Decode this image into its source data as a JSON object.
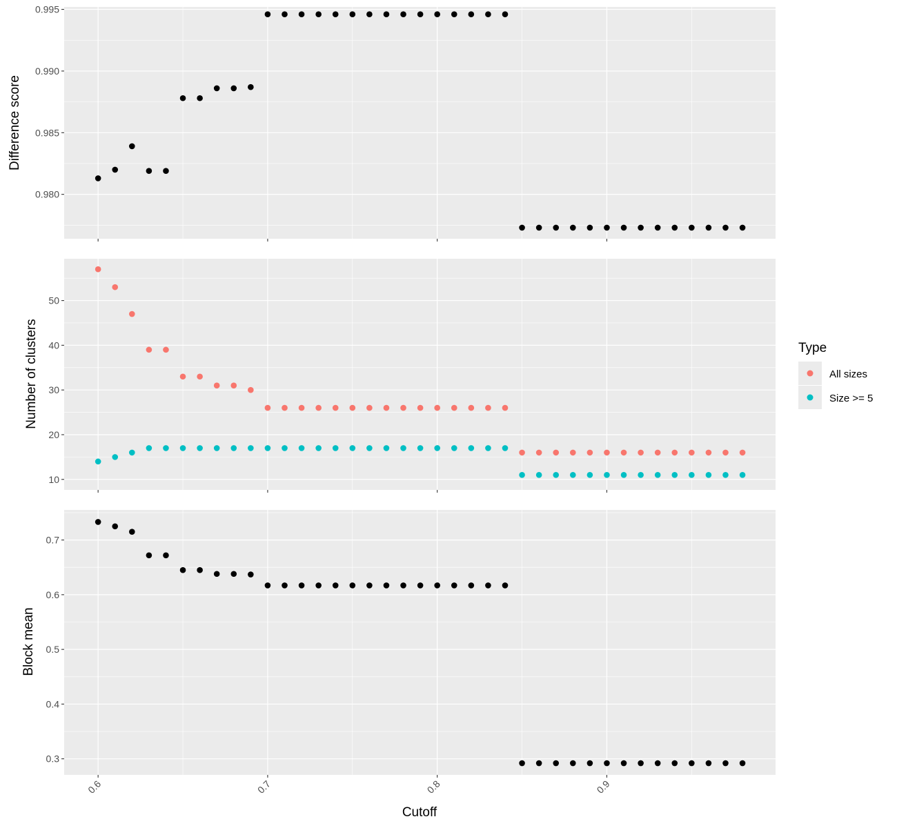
{
  "chart_data": {
    "type": "scatter",
    "x_label": "Cutoff",
    "x_ticks": [
      0.6,
      0.7,
      0.8,
      0.9
    ],
    "x_tick_labels": [
      "0.6",
      "0.7",
      "0.8",
      "0.9"
    ],
    "x_range": [
      0.58,
      0.9995
    ],
    "grid": true,
    "legend": {
      "title": "Type",
      "placement": "right",
      "entries": [
        {
          "label": "All sizes",
          "color": "#F8766D"
        },
        {
          "label": "Size >= 5",
          "color": "#00BFC4"
        }
      ]
    },
    "x": [
      0.6,
      0.61,
      0.62,
      0.63,
      0.64,
      0.65,
      0.66,
      0.67,
      0.68,
      0.69,
      0.7,
      0.71,
      0.72,
      0.73,
      0.74,
      0.75,
      0.76,
      0.77,
      0.78,
      0.79,
      0.8,
      0.81,
      0.82,
      0.83,
      0.84,
      0.85,
      0.86,
      0.87,
      0.88,
      0.89,
      0.9,
      0.91,
      0.92,
      0.93,
      0.94,
      0.95,
      0.96,
      0.97,
      0.98
    ],
    "panels": [
      {
        "y_label": "Difference score",
        "y_range": [
          0.9764,
          0.9952
        ],
        "y_ticks": [
          0.98,
          0.985,
          0.99,
          0.995
        ],
        "y_tick_labels": [
          "0.980",
          "0.985",
          "0.990",
          "0.995"
        ],
        "series": [
          {
            "name": "",
            "color": "#000000",
            "values": [
              0.9813,
              0.982,
              0.9839,
              0.9819,
              0.9819,
              0.9878,
              0.9878,
              0.9886,
              0.9886,
              0.9887,
              0.9946,
              0.9946,
              0.9946,
              0.9946,
              0.9946,
              0.9946,
              0.9946,
              0.9946,
              0.9946,
              0.9946,
              0.9946,
              0.9946,
              0.9946,
              0.9946,
              0.9946,
              0.9773,
              0.9773,
              0.9773,
              0.9773,
              0.9773,
              0.9773,
              0.9773,
              0.9773,
              0.9773,
              0.9773,
              0.9773,
              0.9773,
              0.9773,
              0.9773
            ]
          }
        ]
      },
      {
        "y_label": "Number of clusters",
        "y_range": [
          7.65,
          59.35
        ],
        "y_ticks": [
          10,
          20,
          30,
          40,
          50
        ],
        "y_tick_labels": [
          "10",
          "20",
          "30",
          "40",
          "50"
        ],
        "series": [
          {
            "name": "All sizes",
            "color": "#F8766D",
            "values": [
              57,
              53,
              47,
              39,
              39,
              33,
              33,
              31,
              31,
              30,
              26,
              26,
              26,
              26,
              26,
              26,
              26,
              26,
              26,
              26,
              26,
              26,
              26,
              26,
              26,
              16,
              16,
              16,
              16,
              16,
              16,
              16,
              16,
              16,
              16,
              16,
              16,
              16,
              16
            ]
          },
          {
            "name": "Size >= 5",
            "color": "#00BFC4",
            "values": [
              14,
              15,
              16,
              17,
              17,
              17,
              17,
              17,
              17,
              17,
              17,
              17,
              17,
              17,
              17,
              17,
              17,
              17,
              17,
              17,
              17,
              17,
              17,
              17,
              17,
              11,
              11,
              11,
              11,
              11,
              11,
              11,
              11,
              11,
              11,
              11,
              11,
              11,
              11
            ]
          }
        ]
      },
      {
        "y_label": "Block mean",
        "y_range": [
          0.2706,
          0.755
        ],
        "y_ticks": [
          0.3,
          0.4,
          0.5,
          0.6,
          0.7
        ],
        "y_tick_labels": [
          "0.3",
          "0.4",
          "0.5",
          "0.6",
          "0.7"
        ],
        "series": [
          {
            "name": "",
            "color": "#000000",
            "values": [
              0.733,
              0.725,
              0.715,
              0.672,
              0.672,
              0.645,
              0.645,
              0.638,
              0.638,
              0.637,
              0.617,
              0.617,
              0.617,
              0.617,
              0.617,
              0.617,
              0.617,
              0.617,
              0.617,
              0.617,
              0.617,
              0.617,
              0.617,
              0.617,
              0.617,
              0.292,
              0.292,
              0.292,
              0.292,
              0.292,
              0.292,
              0.292,
              0.292,
              0.292,
              0.292,
              0.292,
              0.292,
              0.292,
              0.292
            ]
          }
        ]
      }
    ]
  }
}
